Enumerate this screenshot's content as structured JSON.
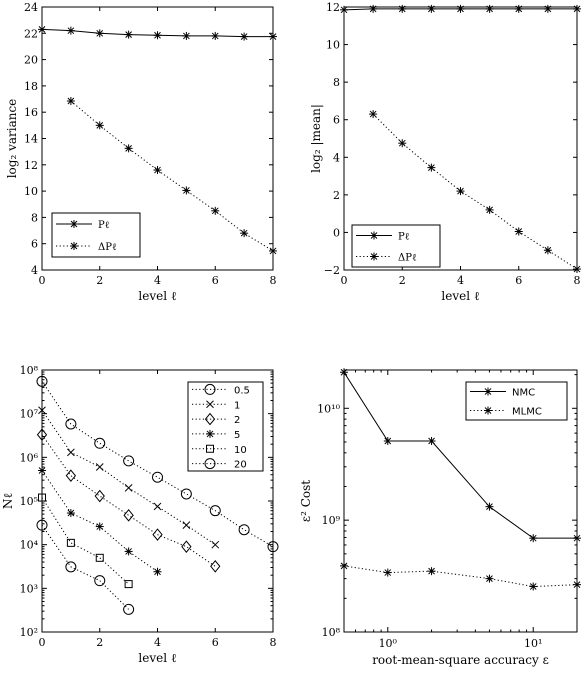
{
  "chart_data": [
    {
      "type": "line",
      "xlabel": "level ℓ",
      "ylabel": "log₂ variance",
      "xlim": [
        0,
        8
      ],
      "ylim": [
        4,
        24
      ],
      "xticks": [
        0,
        2,
        4,
        6,
        8
      ],
      "yticks": [
        4,
        6,
        8,
        10,
        12,
        14,
        16,
        18,
        20,
        22,
        24
      ],
      "legend_position": "bottom-left",
      "series": [
        {
          "name": "Pℓ",
          "style": "solid",
          "marker": "asterisk",
          "x": [
            0,
            1,
            2,
            3,
            4,
            5,
            6,
            7,
            8
          ],
          "y": [
            22.3,
            22.2,
            22.0,
            21.9,
            21.85,
            21.8,
            21.8,
            21.75,
            21.75
          ]
        },
        {
          "name": "ΔPℓ",
          "style": "dotted",
          "marker": "asterisk",
          "x": [
            1,
            2,
            3,
            4,
            5,
            6,
            7,
            8
          ],
          "y": [
            16.85,
            15.0,
            13.25,
            11.6,
            10.05,
            8.5,
            6.8,
            5.45
          ]
        }
      ]
    },
    {
      "type": "line",
      "xlabel": "level ℓ",
      "ylabel": "log₂ |mean|",
      "xlim": [
        0,
        8
      ],
      "ylim": [
        -2,
        12
      ],
      "xticks": [
        0,
        2,
        4,
        6,
        8
      ],
      "yticks": [
        -2,
        0,
        2,
        4,
        6,
        8,
        10,
        12
      ],
      "legend_position": "bottom-left",
      "series": [
        {
          "name": "Pℓ",
          "style": "solid",
          "marker": "asterisk",
          "x": [
            0,
            1,
            2,
            3,
            4,
            5,
            6,
            7,
            8
          ],
          "y": [
            11.85,
            11.9,
            11.9,
            11.9,
            11.9,
            11.9,
            11.9,
            11.9,
            11.9
          ]
        },
        {
          "name": "ΔPℓ",
          "style": "dotted",
          "marker": "asterisk",
          "x": [
            1,
            2,
            3,
            4,
            5,
            6,
            7,
            8
          ],
          "y": [
            6.3,
            4.75,
            3.45,
            2.2,
            1.2,
            0.05,
            -0.95,
            -1.95
          ]
        }
      ]
    },
    {
      "type": "line",
      "xlabel": "level ℓ",
      "ylabel": "Nℓ",
      "xlim": [
        0,
        8
      ],
      "ylim": [
        100,
        100000000
      ],
      "yscale": "log",
      "xticks": [
        0,
        2,
        4,
        6,
        8
      ],
      "yticks": [
        "10²",
        "10³",
        "10⁴",
        "10⁵",
        "10⁶",
        "10⁷",
        "10⁸"
      ],
      "legend_position": "top-right",
      "series": [
        {
          "name": "0.5",
          "style": "dotted",
          "marker": "circle",
          "x": [
            0,
            1,
            2,
            3,
            4,
            5,
            6,
            7,
            8
          ],
          "y": [
            55000000,
            5800000,
            2100000,
            830000,
            350000,
            145000,
            60000,
            22000,
            9000
          ]
        },
        {
          "name": "1",
          "style": "dotted",
          "marker": "x",
          "x": [
            0,
            1,
            2,
            3,
            4,
            5,
            6
          ],
          "y": [
            12000000,
            1300000,
            600000,
            200000,
            75000,
            28000,
            10000
          ]
        },
        {
          "name": "2",
          "style": "dotted",
          "marker": "diamond",
          "x": [
            0,
            1,
            2,
            3,
            4,
            5,
            6
          ],
          "y": [
            3300000,
            380000,
            130000,
            47000,
            17000,
            9000,
            3200
          ]
        },
        {
          "name": "5",
          "style": "dotted",
          "marker": "asterisk",
          "x": [
            0,
            1,
            2,
            3,
            4
          ],
          "y": [
            500000,
            53000,
            26000,
            7000,
            2400
          ]
        },
        {
          "name": "10",
          "style": "dotted",
          "marker": "square",
          "x": [
            0,
            1,
            2,
            3
          ],
          "y": [
            120000,
            11000,
            5000,
            1250
          ]
        },
        {
          "name": "20",
          "style": "dotted",
          "marker": "circle",
          "x": [
            0,
            1,
            2,
            3
          ],
          "y": [
            28000,
            3100,
            1500,
            330
          ]
        }
      ]
    },
    {
      "type": "line",
      "xlabel": "root-mean-square accuracy ε",
      "ylabel": "ε² Cost",
      "xscale": "log",
      "yscale": "log",
      "xlim": [
        0.5,
        20
      ],
      "ylim": [
        100000000,
        22000000000
      ],
      "xticks": [
        "10⁰",
        "10¹"
      ],
      "yticks": [
        "10⁸",
        "10⁹",
        "10¹⁰"
      ],
      "legend_position": "top-right",
      "series": [
        {
          "name": "NMC",
          "style": "solid",
          "marker": "asterisk",
          "x": [
            0.5,
            1,
            2,
            5,
            10,
            20
          ],
          "y": [
            21000000000,
            5100000000,
            5100000000,
            1320000000,
            690000000,
            690000000
          ]
        },
        {
          "name": "MLMC",
          "style": "dotted",
          "marker": "asterisk",
          "x": [
            0.5,
            1,
            2,
            5,
            10,
            20
          ],
          "y": [
            390000000,
            340000000,
            350000000,
            300000000,
            255000000,
            265000000
          ]
        }
      ]
    }
  ]
}
